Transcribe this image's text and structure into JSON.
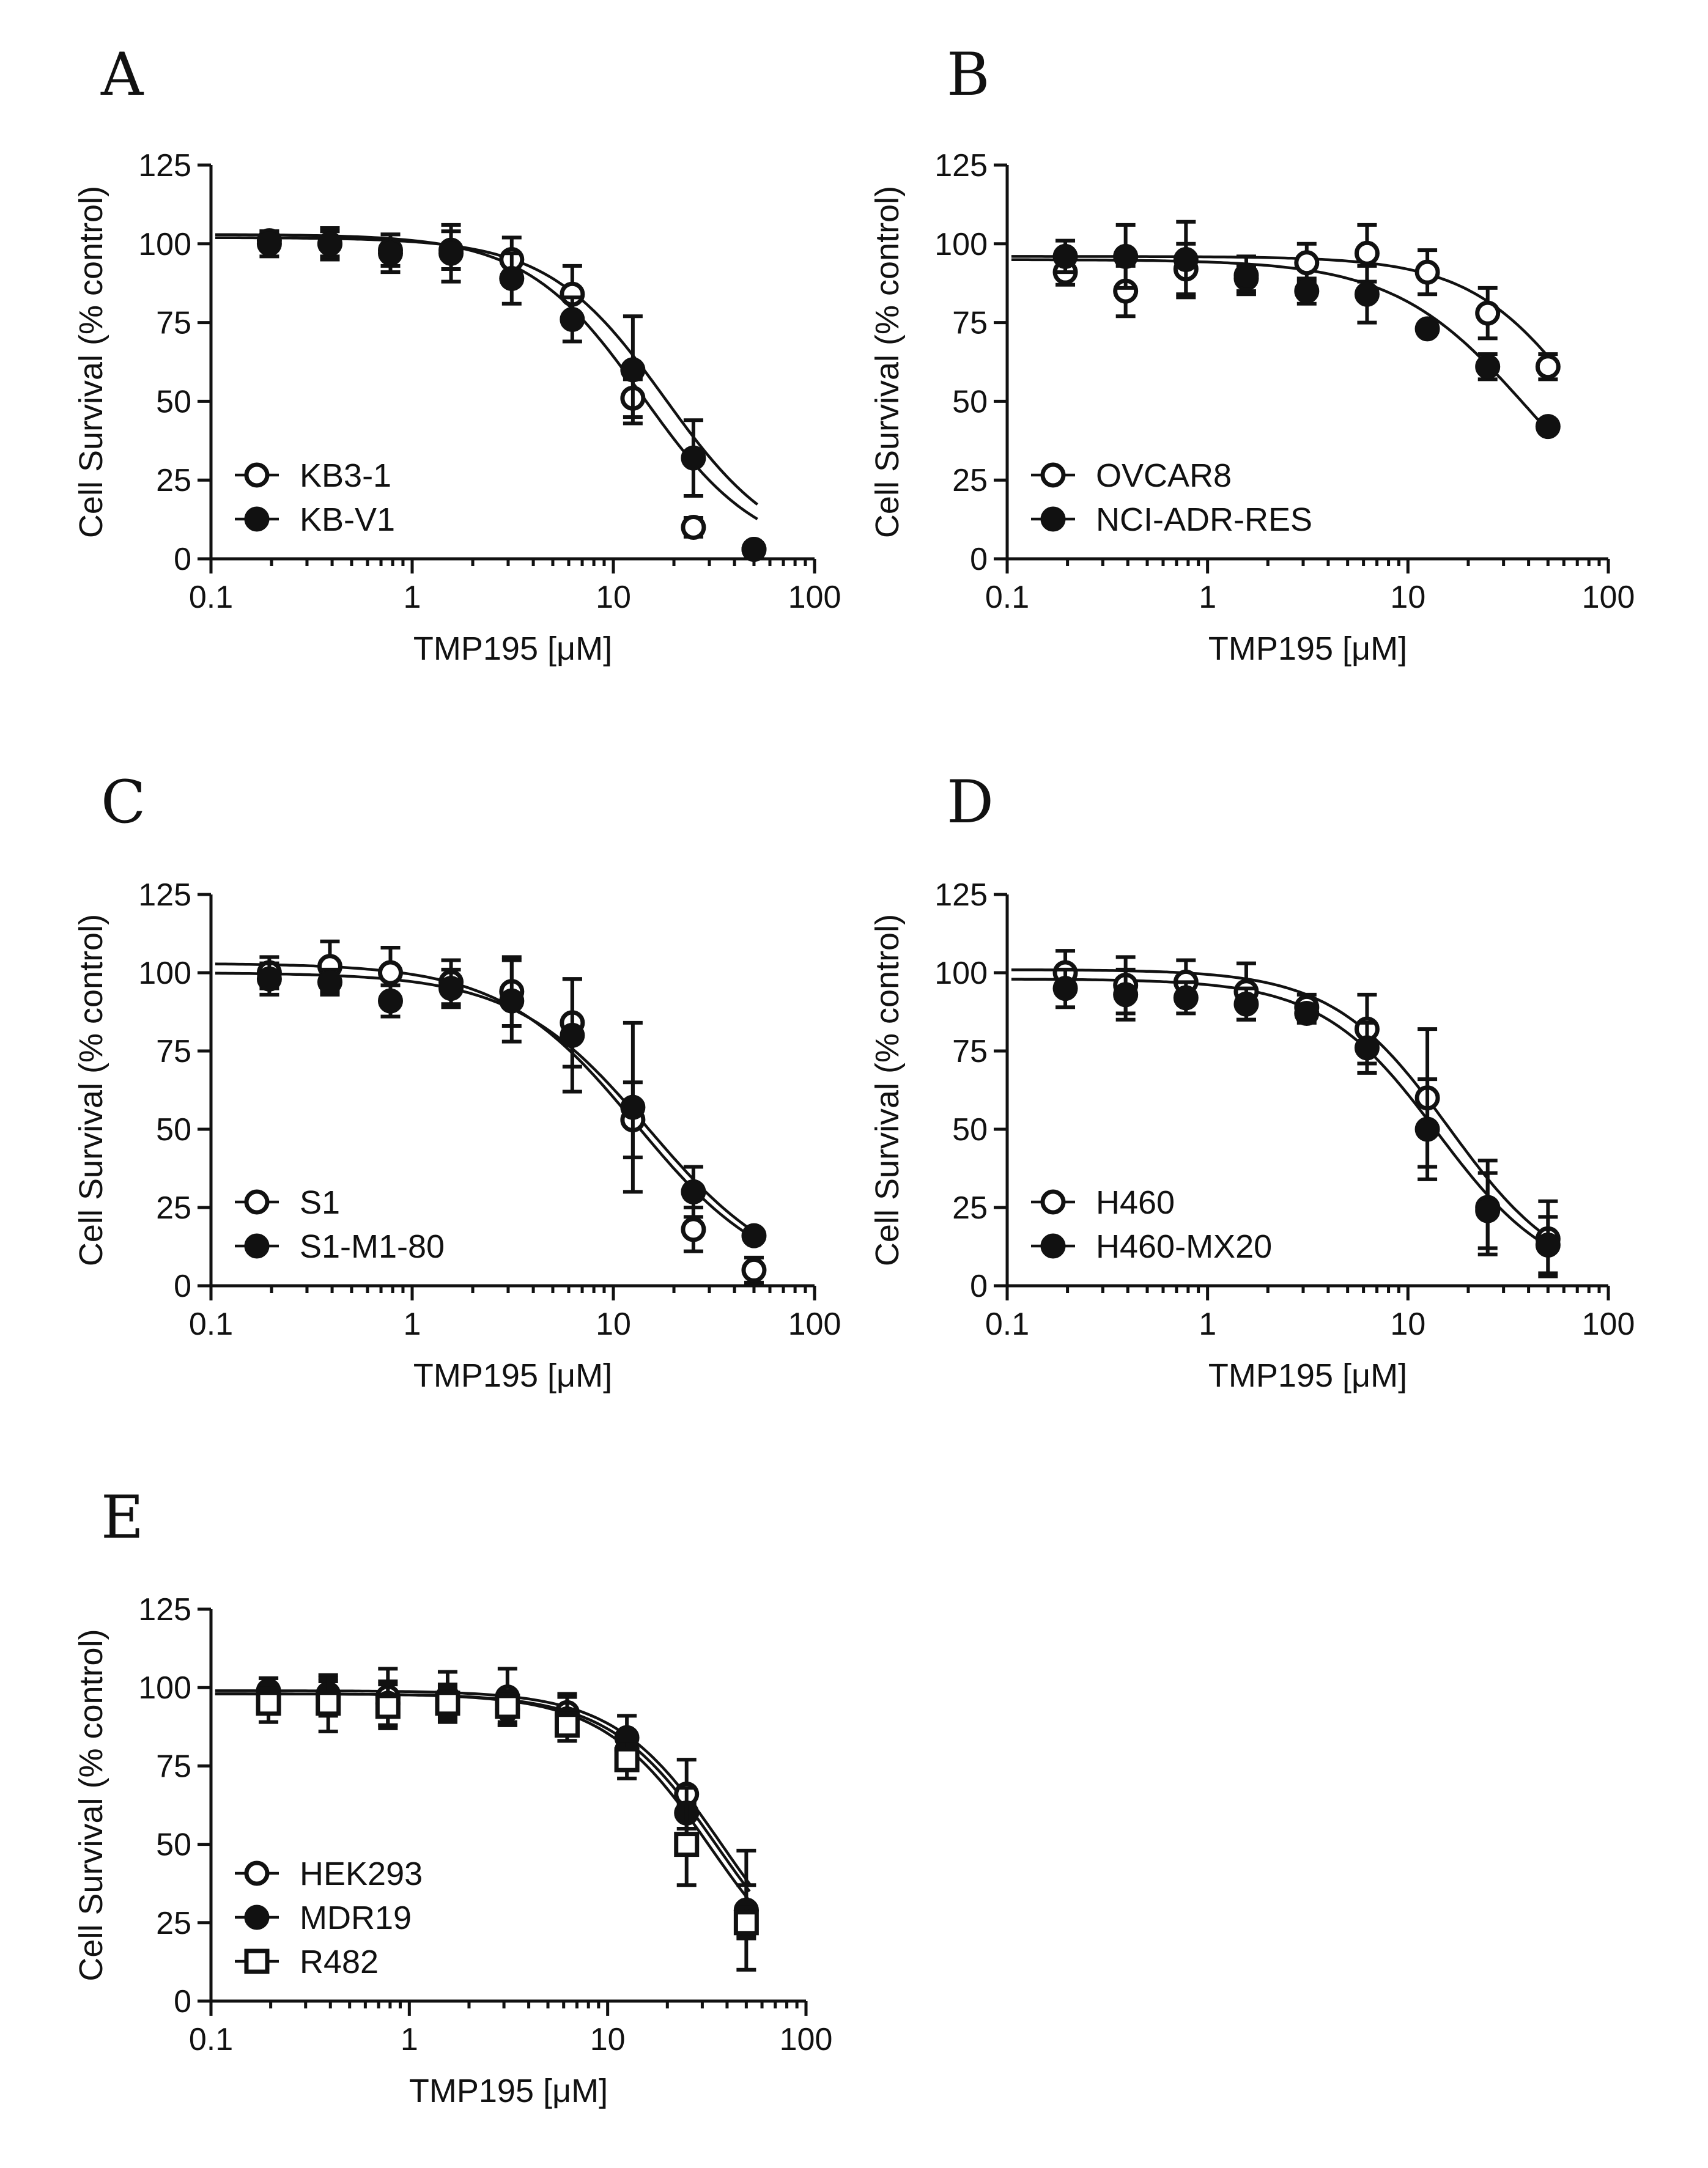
{
  "figure": {
    "y_axis_label": "Cell Survival (% control)",
    "x_axis_label": "TMP195 [μM]"
  },
  "chart_data": [
    {
      "panel": "A",
      "type": "scatter",
      "xscale": "log",
      "xlim": [
        0.1,
        100
      ],
      "ylim": [
        0,
        125
      ],
      "xticks": [
        "0.1",
        "1",
        "10",
        "100"
      ],
      "yticks": [
        "0",
        "25",
        "50",
        "75",
        "100",
        "125"
      ],
      "xlabel": "TMP195 [μM]",
      "ylabel": "Cell Survival (% control)",
      "legend_position": "bottom-left",
      "series": [
        {
          "name": "KB3-1",
          "marker": "open-circle",
          "x": [
            0.195,
            0.39,
            0.78,
            1.56,
            3.125,
            6.25,
            12.5,
            25,
            50
          ],
          "y": [
            101,
            100,
            98,
            98,
            95,
            84,
            51,
            10,
            3
          ],
          "err": [
            3,
            5,
            5,
            6,
            7,
            9,
            6,
            3,
            2
          ],
          "fit": {
            "top": 103,
            "bottom": 0,
            "ec50": 14,
            "hill": 1.5
          }
        },
        {
          "name": "KB-V1",
          "marker": "filled-circle",
          "x": [
            0.195,
            0.39,
            0.78,
            1.56,
            3.125,
            6.25,
            12.5,
            25,
            50
          ],
          "y": [
            100,
            100,
            97,
            97,
            89,
            76,
            60,
            32,
            3
          ],
          "err": [
            4,
            4,
            6,
            9,
            8,
            7,
            17,
            12,
            2
          ],
          "fit": {
            "top": 102,
            "bottom": 0,
            "ec50": 18,
            "hill": 1.5
          }
        }
      ]
    },
    {
      "panel": "B",
      "type": "scatter",
      "xscale": "log",
      "xlim": [
        0.1,
        100
      ],
      "ylim": [
        0,
        125
      ],
      "xticks": [
        "0.1",
        "1",
        "10",
        "100"
      ],
      "yticks": [
        "0",
        "25",
        "50",
        "75",
        "100",
        "125"
      ],
      "xlabel": "TMP195 [μM]",
      "ylabel": "Cell Survival (% control)",
      "legend_position": "bottom-left",
      "series": [
        {
          "name": "OVCAR8",
          "marker": "open-circle",
          "x": [
            0.195,
            0.39,
            0.78,
            1.56,
            3.125,
            6.25,
            12.5,
            25,
            50
          ],
          "y": [
            91,
            85,
            92,
            89,
            94,
            97,
            91,
            78,
            61
          ],
          "err": [
            4,
            8,
            8,
            4,
            6,
            9,
            7,
            8,
            4
          ],
          "fit": {
            "top": 96,
            "bottom": 0,
            "ec50": 80,
            "hill": 1.5
          }
        },
        {
          "name": "NCI-ADR-RES",
          "marker": "filled-circle",
          "x": [
            0.195,
            0.39,
            0.78,
            1.56,
            3.125,
            6.25,
            12.5,
            25,
            50
          ],
          "y": [
            96,
            96,
            95,
            90,
            85,
            84,
            73,
            61,
            42
          ],
          "err": [
            5,
            10,
            12,
            6,
            4,
            9,
            2,
            4,
            2
          ],
          "fit": {
            "top": 95,
            "bottom": 0,
            "ec50": 40,
            "hill": 1.3
          }
        }
      ]
    },
    {
      "panel": "C",
      "type": "scatter",
      "xscale": "log",
      "xlim": [
        0.1,
        100
      ],
      "ylim": [
        0,
        125
      ],
      "xticks": [
        "0.1",
        "1",
        "10",
        "100"
      ],
      "yticks": [
        "0",
        "25",
        "50",
        "75",
        "100",
        "125"
      ],
      "xlabel": "TMP195 [μM]",
      "ylabel": "Cell Survival (% control)",
      "legend_position": "bottom-left",
      "series": [
        {
          "name": "S1",
          "marker": "open-circle",
          "x": [
            0.195,
            0.39,
            0.78,
            1.56,
            3.125,
            6.25,
            12.5,
            25,
            50
          ],
          "y": [
            100,
            102,
            100,
            97,
            94,
            84,
            53,
            18,
            5
          ],
          "err": [
            5,
            8,
            8,
            7,
            11,
            14,
            12,
            7,
            4
          ],
          "fit": {
            "top": 103,
            "bottom": 0,
            "ec50": 13,
            "hill": 1.3
          }
        },
        {
          "name": "S1-M1-80",
          "marker": "filled-circle",
          "x": [
            0.195,
            0.39,
            0.78,
            1.56,
            3.125,
            6.25,
            12.5,
            25,
            50
          ],
          "y": [
            98,
            97,
            91,
            95,
            91,
            80,
            57,
            30,
            16
          ],
          "err": [
            5,
            4,
            5,
            6,
            13,
            18,
            27,
            8,
            2
          ],
          "fit": {
            "top": 100,
            "bottom": 0,
            "ec50": 15,
            "hill": 1.3
          }
        }
      ]
    },
    {
      "panel": "D",
      "type": "scatter",
      "xscale": "log",
      "xlim": [
        0.1,
        100
      ],
      "ylim": [
        0,
        125
      ],
      "xticks": [
        "0.1",
        "1",
        "10",
        "100"
      ],
      "yticks": [
        "0",
        "25",
        "50",
        "75",
        "100",
        "125"
      ],
      "xlabel": "TMP195 [μM]",
      "ylabel": "Cell Survival (% control)",
      "legend_position": "bottom-left",
      "series": [
        {
          "name": "H460",
          "marker": "open-circle",
          "x": [
            0.195,
            0.39,
            0.78,
            1.56,
            3.125,
            6.25,
            12.5,
            25,
            50
          ],
          "y": [
            100,
            96,
            97,
            94,
            89,
            82,
            60,
            25,
            15
          ],
          "err": [
            7,
            9,
            7,
            9,
            4,
            11,
            22,
            15,
            12
          ],
          "fit": {
            "top": 101,
            "bottom": 0,
            "ec50": 16,
            "hill": 1.5
          }
        },
        {
          "name": "H460-MX20",
          "marker": "filled-circle",
          "x": [
            0.195,
            0.39,
            0.78,
            1.56,
            3.125,
            6.25,
            12.5,
            25,
            50
          ],
          "y": [
            95,
            93,
            92,
            90,
            87,
            76,
            50,
            24,
            13
          ],
          "err": [
            6,
            8,
            5,
            5,
            3,
            8,
            16,
            12,
            9
          ],
          "fit": {
            "top": 98,
            "bottom": 0,
            "ec50": 14,
            "hill": 1.5
          }
        }
      ]
    },
    {
      "panel": "E",
      "type": "scatter",
      "xscale": "log",
      "xlim": [
        0.1,
        100
      ],
      "ylim": [
        0,
        125
      ],
      "xticks": [
        "0.1",
        "1",
        "10",
        "100"
      ],
      "yticks": [
        "0",
        "25",
        "50",
        "75",
        "100",
        "125"
      ],
      "xlabel": "TMP195 [μM]",
      "ylabel": "Cell Survival (% control)",
      "legend_position": "bottom-left",
      "series": [
        {
          "name": "HEK293",
          "marker": "open-circle",
          "x": [
            0.195,
            0.39,
            0.78,
            1.56,
            3.125,
            6.25,
            12.5,
            25,
            50
          ],
          "y": [
            98,
            97,
            97,
            97,
            97,
            92,
            80,
            66,
            29
          ],
          "err": [
            5,
            6,
            9,
            8,
            9,
            6,
            6,
            11,
            19
          ],
          "fit": {
            "top": 99,
            "bottom": 0,
            "ec50": 38,
            "hill": 1.6
          }
        },
        {
          "name": "MDR19",
          "marker": "filled-circle",
          "x": [
            0.195,
            0.39,
            0.78,
            1.56,
            3.125,
            6.25,
            12.5,
            25,
            50
          ],
          "y": [
            99,
            98,
            95,
            96,
            93,
            90,
            84,
            60,
            29
          ],
          "err": [
            4,
            4,
            7,
            5,
            5,
            7,
            7,
            8,
            8
          ],
          "fit": {
            "top": 98,
            "bottom": 0,
            "ec50": 36,
            "hill": 1.6
          }
        },
        {
          "name": "R482",
          "marker": "open-square",
          "x": [
            0.195,
            0.39,
            0.78,
            1.56,
            3.125,
            6.25,
            12.5,
            25,
            50
          ],
          "y": [
            95,
            95,
            94,
            95,
            94,
            88,
            77,
            50,
            25
          ],
          "err": [
            6,
            9,
            7,
            5,
            5,
            5,
            6,
            13,
            5
          ],
          "fit": {
            "top": 98,
            "bottom": 0,
            "ec50": 33,
            "hill": 1.6
          }
        }
      ]
    }
  ]
}
